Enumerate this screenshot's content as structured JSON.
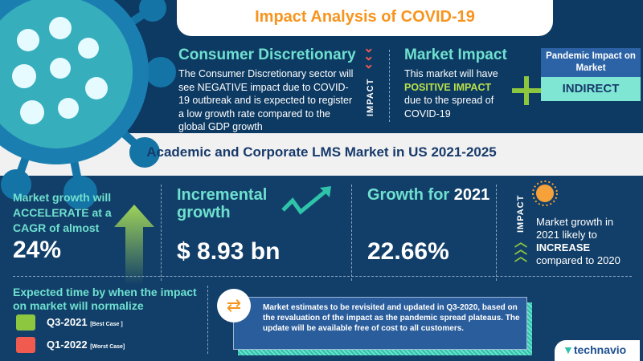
{
  "title": "Impact Analysis of COVID-19",
  "sector": {
    "heading": "Consumer Discretionary",
    "text": "The Consumer Discretionary sector will see NEGATIVE impact due to COVID-19 outbreak and is expected to register a low growth rate compared to the global GDP growth",
    "impact_label": "IMPACT"
  },
  "market_impact": {
    "heading": "Market Impact",
    "line1": "This market will have",
    "highlight": "POSITIVE IMPACT",
    "line2": "due to the spread of COVID-19"
  },
  "pandemic": {
    "heading": "Pandemic Impact on Market",
    "value": "INDIRECT"
  },
  "report_title": "Academic and Corporate LMS Market in US 2021-2025",
  "cagr": {
    "text": "Market growth will ACCELERATE at a CAGR of almost",
    "value": "24%"
  },
  "incremental": {
    "heading": "Incremental growth",
    "value": "$ 8.93 bn"
  },
  "growth2021": {
    "heading": "Growth for",
    "year": "2021",
    "value": "22.66%"
  },
  "impact2021": {
    "label": "IMPACT",
    "line1": "Market growth in 2021 likely to",
    "highlight": "INCREASE",
    "line2": "compared to 2020"
  },
  "normalize": {
    "heading": "Expected time by when the impact on market will normalize",
    "best": "Q3-2021",
    "best_label": "[Best Case ]",
    "worst": "Q1-2022",
    "worst_label": "[Worst Case]"
  },
  "note": "Market estimates to be revisited and updated in Q3-2020, based on the revaluation of the impact as the pandemic spread plateaus. The update will be available free of cost to all customers.",
  "brand": "technavio",
  "colors": {
    "accent": "#f7941d",
    "teal": "#6fe0cf",
    "navy": "#0d3a63",
    "green": "#8dc63f",
    "red": "#f05a4f"
  }
}
